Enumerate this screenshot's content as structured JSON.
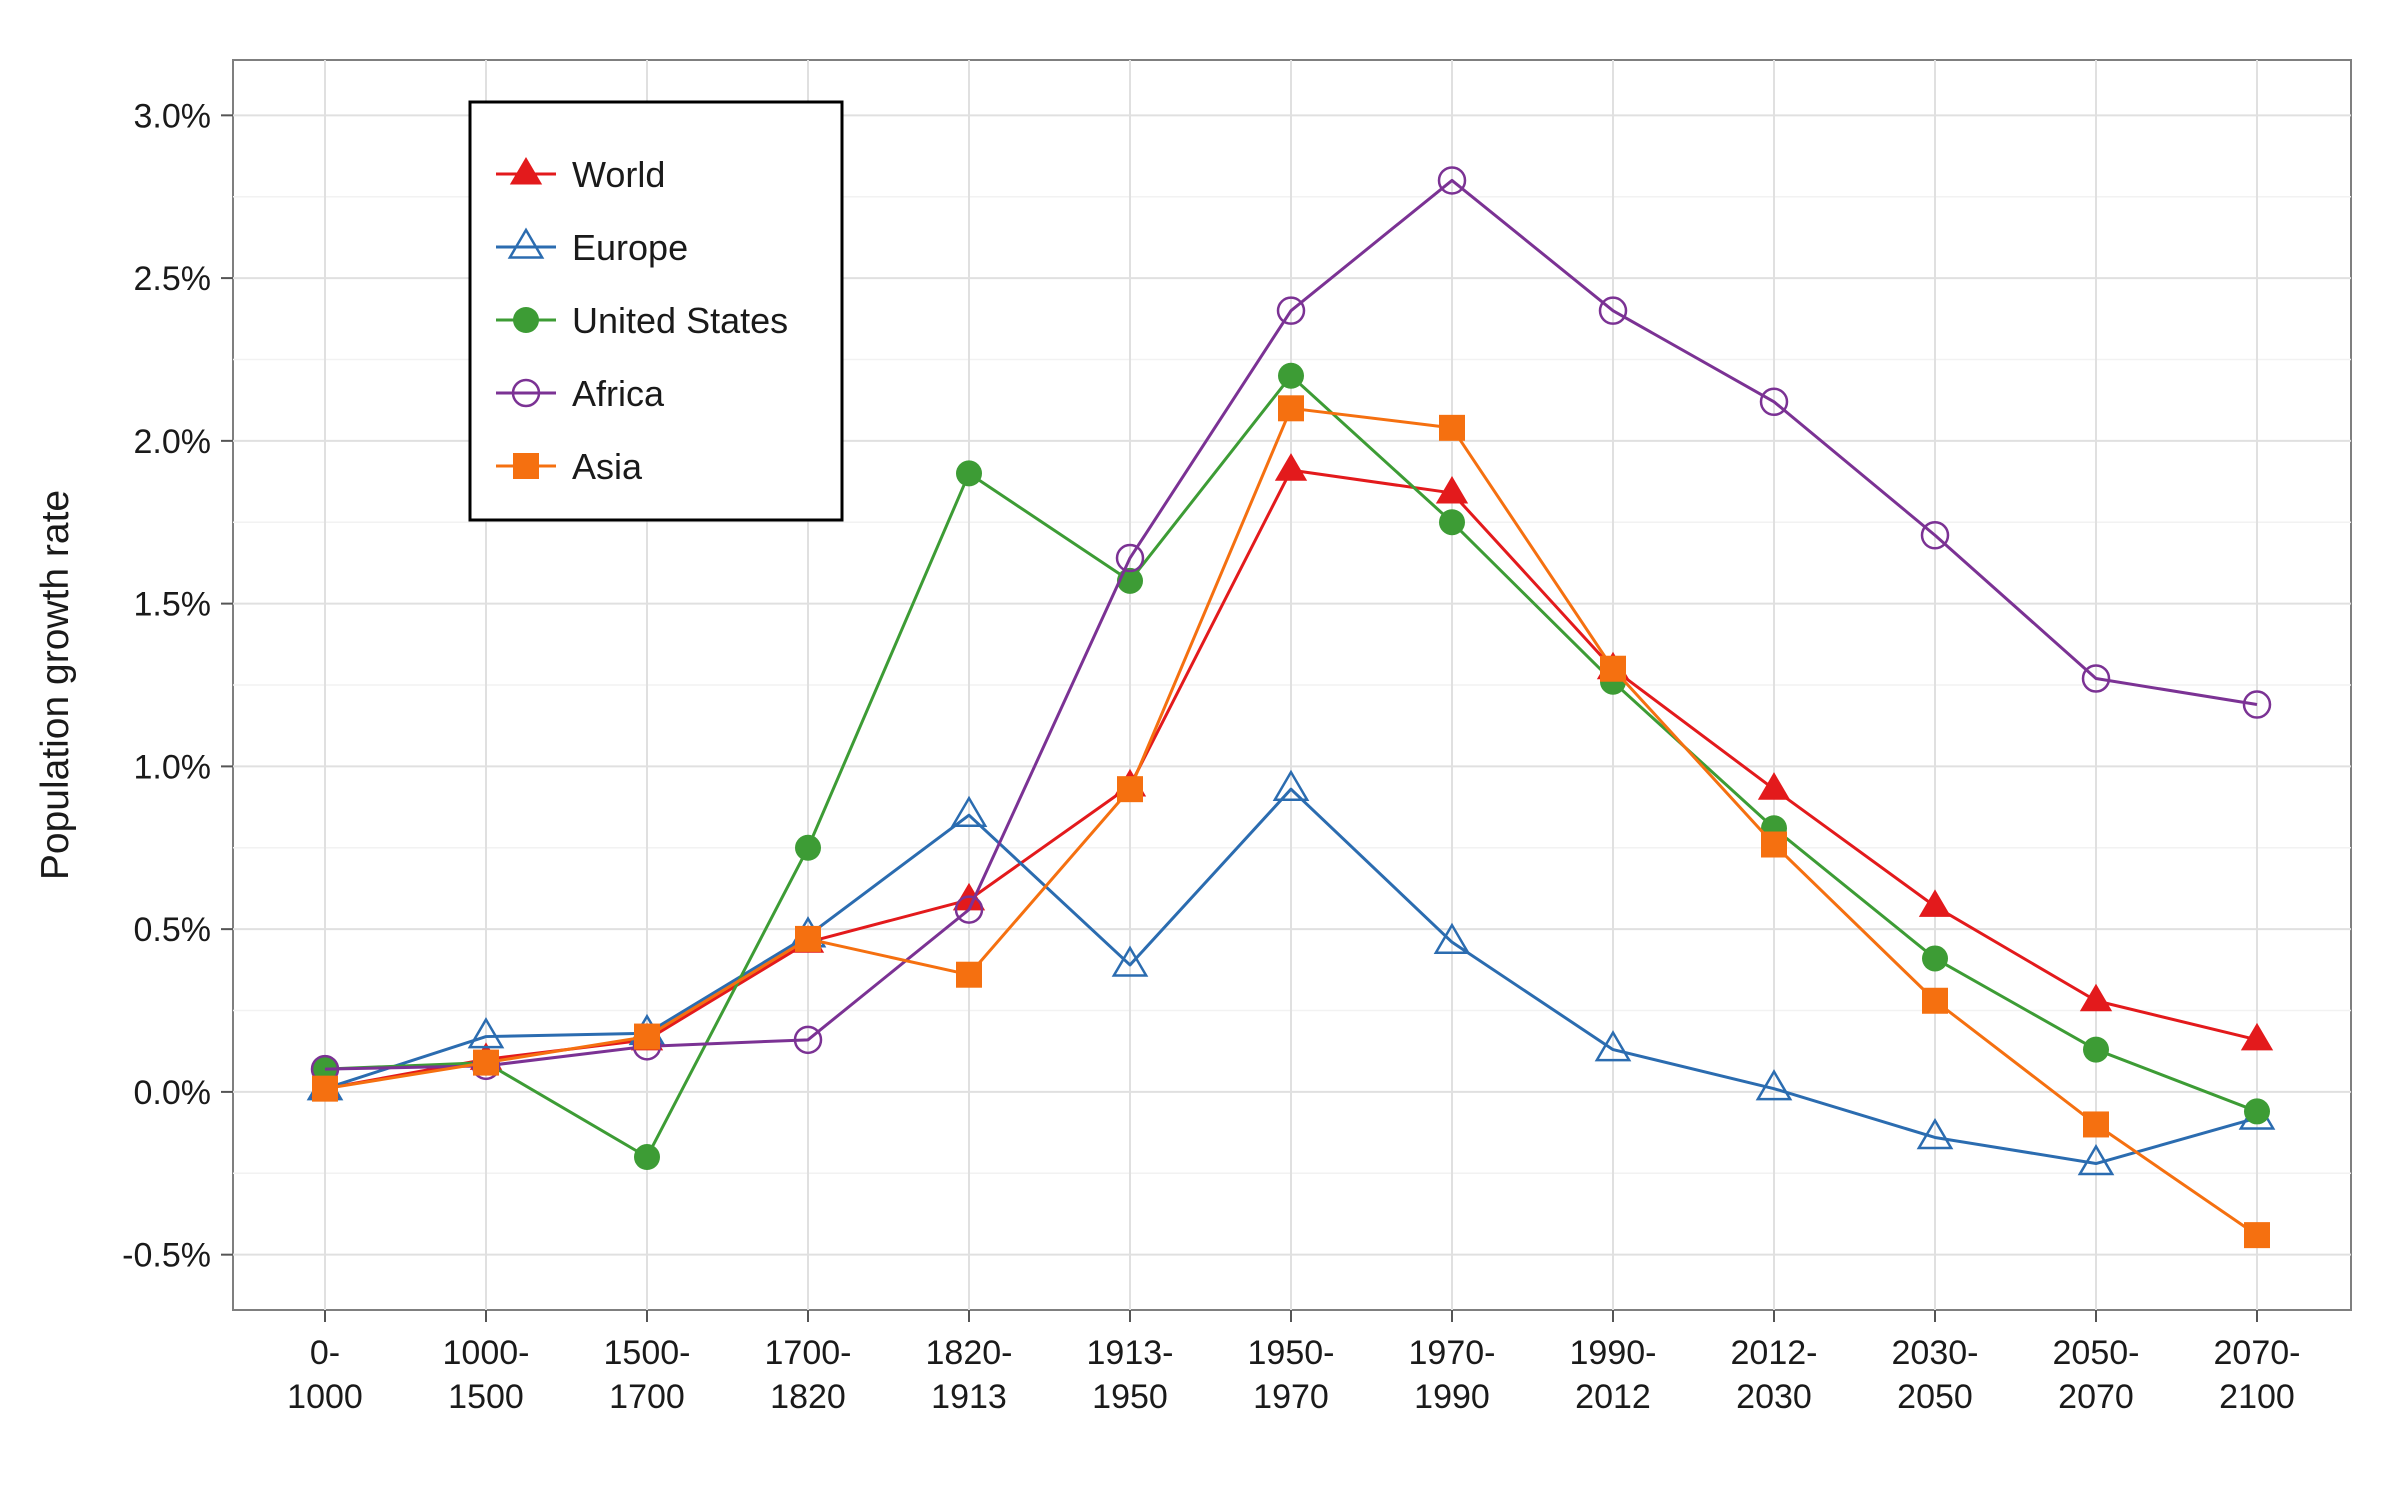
{
  "chart_data": {
    "type": "line",
    "title": "",
    "xlabel": "",
    "ylabel": "Population growth rate",
    "y_tick_labels": [
      "-0.5%",
      "0.0%",
      "0.5%",
      "1.0%",
      "1.5%",
      "2.0%",
      "2.5%",
      "3.0%"
    ],
    "ylim": [
      -0.67,
      3.17
    ],
    "grid": true,
    "legend_position": "top-left",
    "categories": [
      [
        "0-",
        "1000"
      ],
      [
        "1000-",
        "1500"
      ],
      [
        "1500-",
        "1700"
      ],
      [
        "1700-",
        "1820"
      ],
      [
        "1820-",
        "1913"
      ],
      [
        "1913-",
        "1950"
      ],
      [
        "1950-",
        "1970"
      ],
      [
        "1970-",
        "1990"
      ],
      [
        "1990-",
        "2012"
      ],
      [
        "2012-",
        "2030"
      ],
      [
        "2030-",
        "2050"
      ],
      [
        "2050-",
        "2070"
      ],
      [
        "2070-",
        "2100"
      ]
    ],
    "series": [
      {
        "name": "World",
        "color": "#e31a1c",
        "marker": "triangle-filled",
        "values": [
          0.01,
          0.1,
          0.16,
          0.46,
          0.59,
          0.94,
          1.91,
          1.84,
          1.3,
          0.93,
          0.57,
          0.28,
          0.16
        ]
      },
      {
        "name": "Europe",
        "color": "#2b6cb0",
        "marker": "triangle-open",
        "values": [
          0.01,
          0.17,
          0.18,
          0.48,
          0.85,
          0.39,
          0.93,
          0.46,
          0.13,
          0.01,
          -0.14,
          -0.22,
          -0.08
        ]
      },
      {
        "name": "United States",
        "color": "#3d9c35",
        "marker": "circle-filled",
        "values": [
          0.07,
          0.09,
          -0.2,
          0.75,
          1.9,
          1.57,
          2.2,
          1.75,
          1.26,
          0.81,
          0.41,
          0.13,
          -0.06
        ]
      },
      {
        "name": "Africa",
        "color": "#7b3294",
        "marker": "circle-open",
        "values": [
          0.07,
          0.08,
          0.14,
          0.16,
          0.56,
          1.64,
          2.4,
          2.8,
          2.4,
          2.12,
          1.71,
          1.27,
          1.19
        ]
      },
      {
        "name": "Asia",
        "color": "#f57010",
        "marker": "square-filled",
        "values": [
          0.01,
          0.09,
          0.17,
          0.47,
          0.36,
          0.93,
          2.1,
          2.04,
          1.3,
          0.76,
          0.28,
          -0.1,
          -0.44
        ]
      }
    ]
  }
}
